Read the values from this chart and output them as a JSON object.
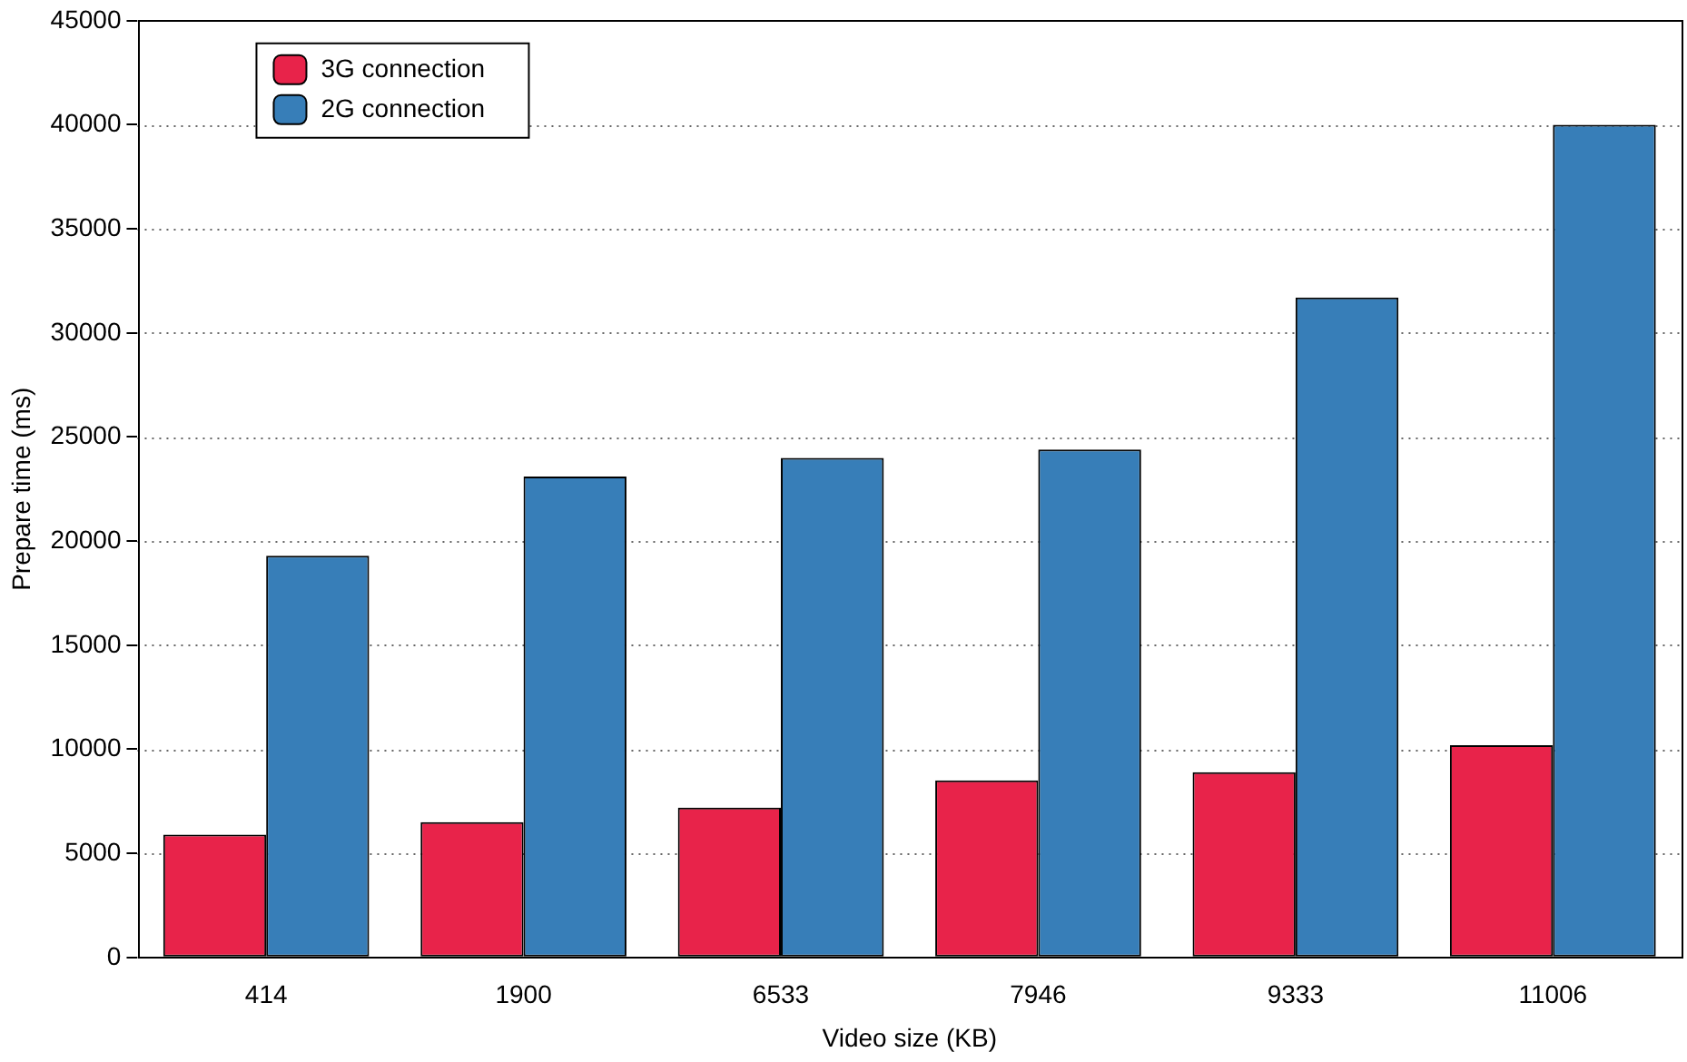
{
  "chart_data": {
    "type": "bar",
    "xlabel": "Video size (KB)",
    "ylabel": "Prepare time (ms)",
    "categories": [
      "414",
      "1900",
      "6533",
      "7946",
      "9333",
      "11006"
    ],
    "series": [
      {
        "name": "3G connection",
        "color": "#e8234a",
        "values": [
          5900,
          6500,
          7200,
          8500,
          8900,
          10200
        ]
      },
      {
        "name": "2G connection",
        "color": "#377eb8",
        "values": [
          19300,
          23100,
          24000,
          24400,
          31700,
          40000
        ]
      }
    ],
    "ylim": [
      0,
      45000
    ],
    "yticks": [
      0,
      5000,
      10000,
      15000,
      20000,
      25000,
      30000,
      35000,
      40000,
      45000
    ],
    "grid": "y",
    "legend": "top left"
  }
}
